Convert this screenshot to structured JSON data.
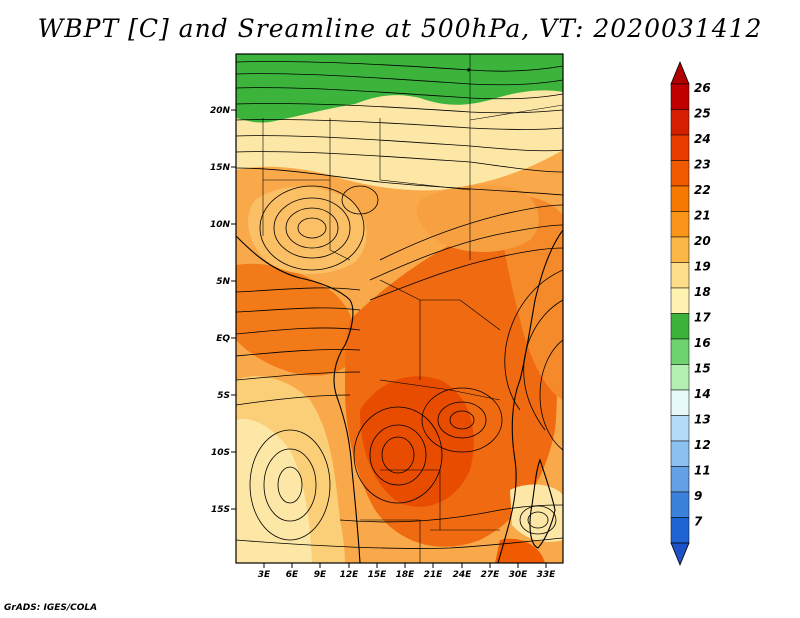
{
  "title": "WBPT [C] and Sreamline at 500hPa, VT: 2020031412",
  "credit": "GrADS: IGES/COLA",
  "map": {
    "lat_labels": [
      "20N",
      "15N",
      "10N",
      "5N",
      "EQ",
      "5S",
      "10S",
      "15S"
    ],
    "lon_labels": [
      "3E",
      "6E",
      "9E",
      "12E",
      "15E",
      "18E",
      "21E",
      "24E",
      "27E",
      "30E",
      "33E"
    ]
  },
  "colorbar": {
    "levels": [
      "26",
      "25",
      "24",
      "23",
      "22",
      "21",
      "20",
      "19",
      "18",
      "17",
      "16",
      "15",
      "14",
      "13",
      "12",
      "11",
      "9",
      "7"
    ],
    "colors": [
      "#c00000",
      "#d42000",
      "#e83c00",
      "#f05a00",
      "#f57800",
      "#f9961a",
      "#fbb848",
      "#fddc8a",
      "#fff2b0",
      "#3cb43c",
      "#6ed26e",
      "#b4f0b4",
      "#e6f8f8",
      "#b4dcf8",
      "#8cc0f0",
      "#64a0e6",
      "#3c82dc",
      "#1e64d2"
    ],
    "top_color": "#b00000",
    "bottom_color": "#1e50c8"
  }
}
